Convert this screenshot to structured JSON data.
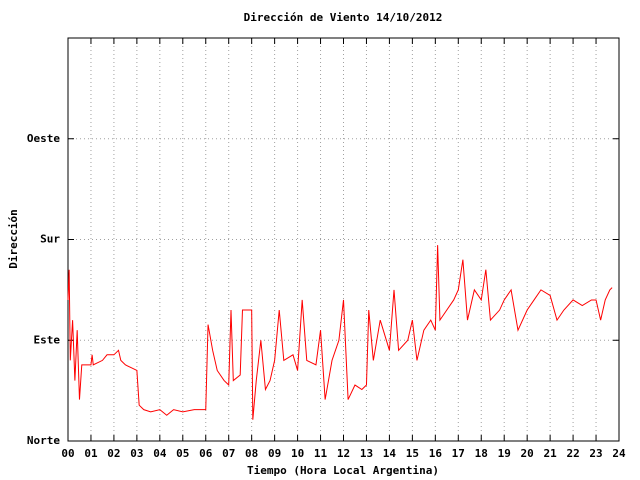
{
  "chart_data": {
    "type": "line",
    "title": "Dirección de Viento 14/10/2012",
    "xlabel": "Tiempo (Hora Local Argentina)",
    "ylabel": "Dirección",
    "xlim": [
      0,
      24
    ],
    "ylim": [
      0,
      360
    ],
    "xticks": [
      {
        "value": 0,
        "label": "00"
      },
      {
        "value": 1,
        "label": "01"
      },
      {
        "value": 2,
        "label": "02"
      },
      {
        "value": 3,
        "label": "03"
      },
      {
        "value": 4,
        "label": "04"
      },
      {
        "value": 5,
        "label": "05"
      },
      {
        "value": 6,
        "label": "06"
      },
      {
        "value": 7,
        "label": "07"
      },
      {
        "value": 8,
        "label": "08"
      },
      {
        "value": 9,
        "label": "09"
      },
      10,
      11,
      12,
      13,
      14,
      15,
      16,
      17,
      18,
      19,
      20,
      21,
      22,
      23,
      24
    ],
    "yticks": [
      {
        "value": 0,
        "label": "Norte"
      },
      {
        "value": 90,
        "label": "Este"
      },
      {
        "value": 180,
        "label": "Sur"
      },
      {
        "value": 270,
        "label": "Oeste"
      }
    ],
    "grid": true,
    "series": [
      {
        "color": "#ff0000",
        "x": [
          0.0,
          0.05,
          0.1,
          0.2,
          0.3,
          0.4,
          0.5,
          0.6,
          0.8,
          1.0,
          1.05,
          1.1,
          1.5,
          1.7,
          2.0,
          2.2,
          2.3,
          2.5,
          2.8,
          3.0,
          3.1,
          3.3,
          3.6,
          4.0,
          4.3,
          4.6,
          5.0,
          5.5,
          6.0,
          6.1,
          6.3,
          6.5,
          6.8,
          7.0,
          7.1,
          7.2,
          7.5,
          7.6,
          8.0,
          8.05,
          8.2,
          8.4,
          8.6,
          8.8,
          9.0,
          9.2,
          9.4,
          9.8,
          10.0,
          10.2,
          10.4,
          10.8,
          11.0,
          11.2,
          11.5,
          11.8,
          12.0,
          12.2,
          12.5,
          12.8,
          13.0,
          13.1,
          13.3,
          13.6,
          14.0,
          14.2,
          14.4,
          14.8,
          15.0,
          15.2,
          15.5,
          15.8,
          16.0,
          16.1,
          16.2,
          16.5,
          16.8,
          17.0,
          17.2,
          17.4,
          17.7,
          18.0,
          18.2,
          18.4,
          18.8,
          19.0,
          19.3,
          19.6,
          20.0,
          20.3,
          20.6,
          21.0,
          21.3,
          21.6,
          22.0,
          22.4,
          22.8,
          23.0,
          23.2,
          23.4,
          23.6,
          23.7
        ],
        "values": [
          126,
          153,
          72,
          108,
          54,
          99,
          37,
          68,
          68,
          68,
          77,
          68,
          72,
          77,
          77,
          81,
          72,
          68,
          65,
          63,
          32,
          28,
          26,
          28,
          23,
          28,
          26,
          28,
          28,
          104,
          81,
          63,
          54,
          50,
          117,
          54,
          59,
          117,
          117,
          19,
          54,
          90,
          46,
          54,
          72,
          117,
          72,
          77,
          63,
          126,
          72,
          68,
          99,
          37,
          72,
          90,
          126,
          37,
          50,
          46,
          50,
          117,
          72,
          108,
          81,
          135,
          81,
          90,
          108,
          72,
          99,
          108,
          99,
          175,
          108,
          117,
          126,
          135,
          162,
          108,
          135,
          126,
          153,
          108,
          117,
          126,
          135,
          99,
          117,
          126,
          135,
          130,
          108,
          117,
          126,
          121,
          126,
          126,
          108,
          126,
          135,
          137
        ]
      }
    ]
  }
}
